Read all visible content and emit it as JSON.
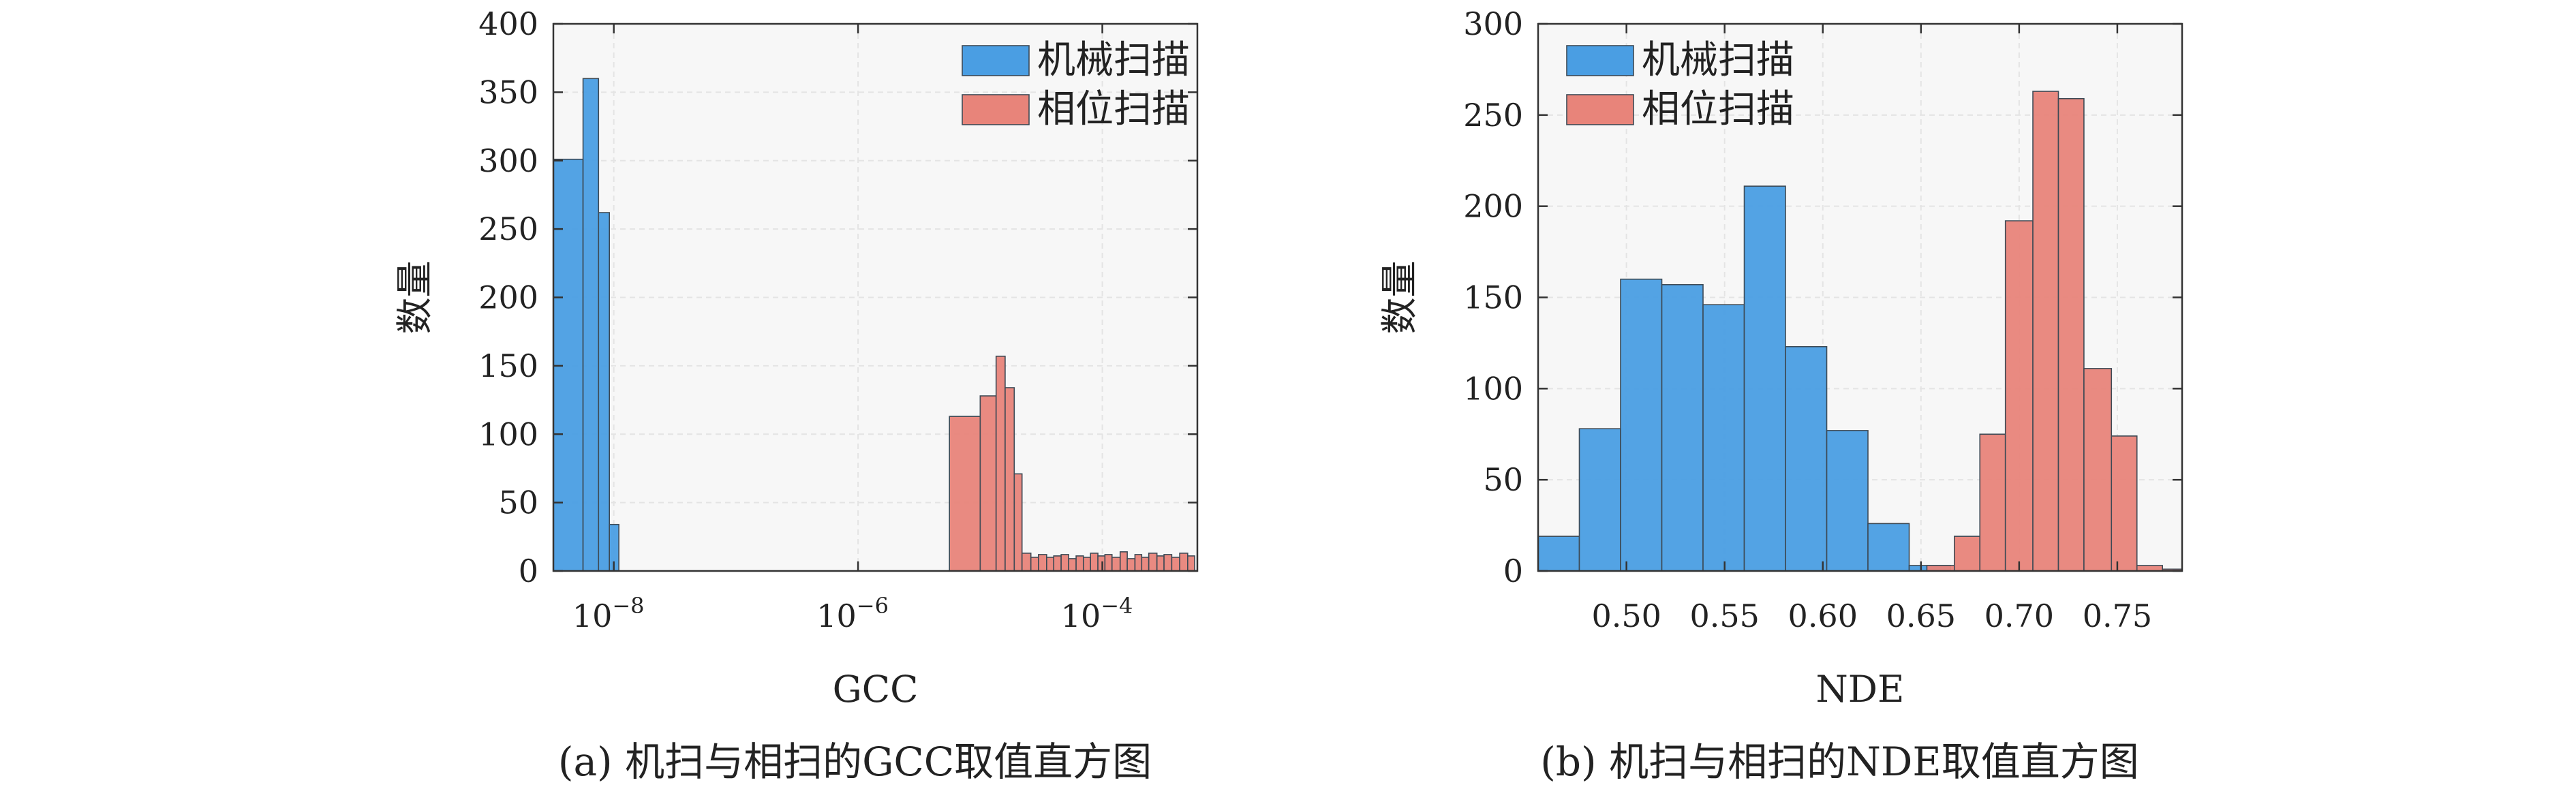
{
  "colors": {
    "series1": "#4a9ee3",
    "series2": "#e8847a",
    "plot_bg": "#f7f7f7",
    "grid": "#e4e4e4"
  },
  "chart_data": [
    {
      "type": "bar",
      "xscale": "log",
      "xlabel": "GCC",
      "ylabel": "数量",
      "caption": "(a) 机扫与相扫的GCC取值直方图",
      "xlim": [
        3.2e-09,
        0.0006
      ],
      "ylim": [
        0,
        400
      ],
      "yticks": [
        0,
        50,
        100,
        150,
        200,
        250,
        300,
        350,
        400
      ],
      "xticks": [
        1e-08,
        1e-06,
        0.0001
      ],
      "xtick_labels": [
        "10",
        "10",
        "10"
      ],
      "xtick_exponents": [
        "−8",
        "−6",
        "−4"
      ],
      "legend_position": "top-right",
      "grid": true,
      "series": [
        {
          "name": "机械扫描",
          "bins": [
            [
              3.2e-09,
              5.6e-09,
              301
            ],
            [
              5.6e-09,
              7.5e-09,
              360
            ],
            [
              7.5e-09,
              9.2e-09,
              262
            ],
            [
              9.2e-09,
              1.1e-08,
              34
            ]
          ]
        },
        {
          "name": "相位扫描",
          "bins": [
            [
              5.6e-06,
              1e-05,
              113
            ],
            [
              1e-05,
              1.35e-05,
              128
            ],
            [
              1.35e-05,
              1.6e-05,
              157
            ],
            [
              1.6e-05,
              1.9e-05,
              134
            ],
            [
              1.9e-05,
              2.2e-05,
              71
            ],
            [
              2.2e-05,
              2.6e-05,
              13
            ],
            [
              2.6e-05,
              3e-05,
              10
            ],
            [
              3e-05,
              3.5e-05,
              12
            ],
            [
              3.5e-05,
              4e-05,
              10
            ],
            [
              4e-05,
              4.6e-05,
              11
            ],
            [
              4.6e-05,
              5.3e-05,
              12
            ],
            [
              5.3e-05,
              6.1e-05,
              9
            ],
            [
              6.1e-05,
              7e-05,
              11
            ],
            [
              7e-05,
              8e-05,
              10
            ],
            [
              8e-05,
              9.2e-05,
              13
            ],
            [
              9.2e-05,
              0.000105,
              11
            ],
            [
              0.000105,
              0.00012,
              12
            ],
            [
              0.00012,
              0.00014,
              10
            ],
            [
              0.00014,
              0.00016,
              14
            ],
            [
              0.00016,
              0.000185,
              9
            ],
            [
              0.000185,
              0.00021,
              12
            ],
            [
              0.00021,
              0.00024,
              10
            ],
            [
              0.00024,
              0.00028,
              13
            ],
            [
              0.00028,
              0.00032,
              11
            ],
            [
              0.00032,
              0.00037,
              12
            ],
            [
              0.00037,
              0.00043,
              10
            ],
            [
              0.00043,
              0.0005,
              13
            ],
            [
              0.0005,
              0.00057,
              11
            ]
          ]
        }
      ]
    },
    {
      "type": "bar",
      "xscale": "linear",
      "xlabel": "NDE",
      "ylabel": "数量",
      "caption": "(b) 机扫与相扫的NDE取值直方图",
      "xlim": [
        0.455,
        0.783
      ],
      "ylim": [
        0,
        300
      ],
      "yticks": [
        0,
        50,
        100,
        150,
        200,
        250,
        300
      ],
      "xticks": [
        0.5,
        0.55,
        0.6,
        0.65,
        0.7,
        0.75
      ],
      "xtick_labels": [
        "0.50",
        "0.55",
        "0.60",
        "0.65",
        "0.70",
        "0.75"
      ],
      "legend_position": "top-left",
      "grid": true,
      "series": [
        {
          "name": "机械扫描",
          "bins": [
            [
              0.455,
              0.476,
              19
            ],
            [
              0.476,
              0.497,
              78
            ],
            [
              0.497,
              0.518,
              160
            ],
            [
              0.518,
              0.539,
              157
            ],
            [
              0.539,
              0.56,
              146
            ],
            [
              0.56,
              0.581,
              211
            ],
            [
              0.581,
              0.602,
              123
            ],
            [
              0.602,
              0.623,
              77
            ],
            [
              0.623,
              0.644,
              26
            ],
            [
              0.644,
              0.665,
              3
            ]
          ]
        },
        {
          "name": "相位扫描",
          "bins": [
            [
              0.653,
              0.667,
              3
            ],
            [
              0.667,
              0.68,
              19
            ],
            [
              0.68,
              0.693,
              75
            ],
            [
              0.693,
              0.707,
              192
            ],
            [
              0.707,
              0.72,
              263
            ],
            [
              0.72,
              0.733,
              259
            ],
            [
              0.733,
              0.747,
              111
            ],
            [
              0.747,
              0.76,
              74
            ],
            [
              0.76,
              0.773,
              3
            ],
            [
              0.773,
              0.783,
              1
            ]
          ]
        }
      ]
    }
  ]
}
